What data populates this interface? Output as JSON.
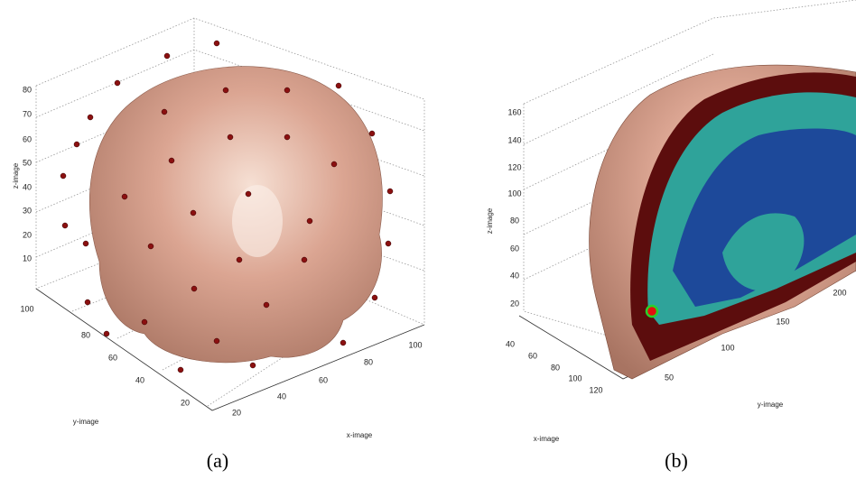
{
  "panels": [
    {
      "caption": "(a)",
      "z_label": "z-image",
      "y_label": "y-image",
      "x_label": "x-image",
      "z_ticks": [
        "80",
        "70",
        "60",
        "50",
        "40",
        "30",
        "20",
        "10"
      ],
      "y_ticks": [
        "100",
        "80",
        "60",
        "40",
        "20"
      ],
      "x_ticks": [
        "20",
        "40",
        "60",
        "80",
        "100"
      ]
    },
    {
      "caption": "(b)",
      "z_label": "z-image",
      "y_label": "y-image",
      "x_label": "x-image",
      "z_ticks": [
        "160",
        "140",
        "120",
        "100",
        "80",
        "60",
        "40",
        "20"
      ],
      "x_ticks": [
        "40",
        "60",
        "80",
        "100",
        "120"
      ],
      "y_ticks": [
        "50",
        "100",
        "150",
        "200"
      ]
    }
  ]
}
